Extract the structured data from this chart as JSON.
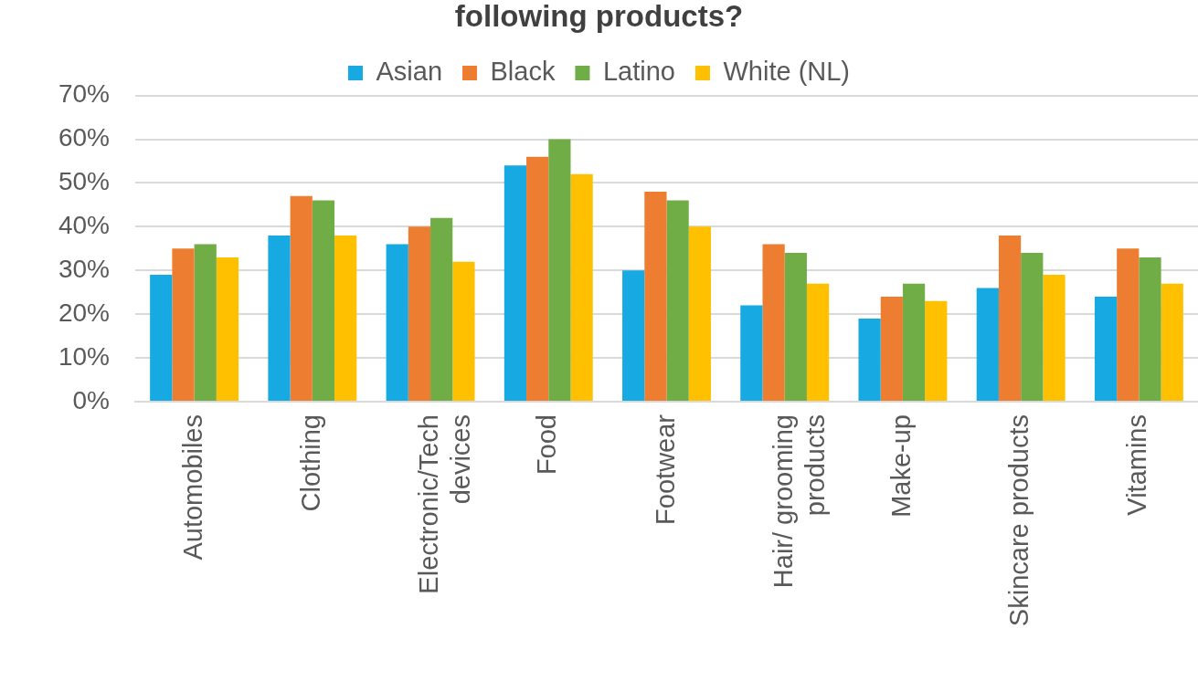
{
  "chart_data": {
    "type": "bar",
    "title": "following products?",
    "categories": [
      "Automobiles",
      "Clothing",
      "Electronic/Tech devices",
      "Food",
      "Footwear",
      "Hair/ grooming products",
      "Make-up",
      "Skincare products",
      "Vitamins"
    ],
    "series": [
      {
        "name": "Asian",
        "color": "#17a9e1",
        "values": [
          29,
          38,
          36,
          54,
          30,
          22,
          19,
          26,
          24
        ]
      },
      {
        "name": "Black",
        "color": "#ed7d31",
        "values": [
          35,
          47,
          40,
          56,
          48,
          36,
          24,
          38,
          35
        ]
      },
      {
        "name": "Latino",
        "color": "#70ad47",
        "values": [
          36,
          46,
          42,
          60,
          46,
          34,
          27,
          34,
          33
        ]
      },
      {
        "name": "White (NL)",
        "color": "#ffc000",
        "values": [
          33,
          38,
          32,
          52,
          40,
          27,
          23,
          29,
          27
        ]
      }
    ],
    "ylim": [
      0,
      70
    ],
    "yticks": [
      {
        "value": 0,
        "label": "0%"
      },
      {
        "value": 10,
        "label": "10%"
      },
      {
        "value": 20,
        "label": "20%"
      },
      {
        "value": 30,
        "label": "30%"
      },
      {
        "value": 40,
        "label": "40%"
      },
      {
        "value": 50,
        "label": "50%"
      },
      {
        "value": 60,
        "label": "60%"
      },
      {
        "value": 70,
        "label": "70%"
      }
    ],
    "grid": "y",
    "legend": "top"
  }
}
